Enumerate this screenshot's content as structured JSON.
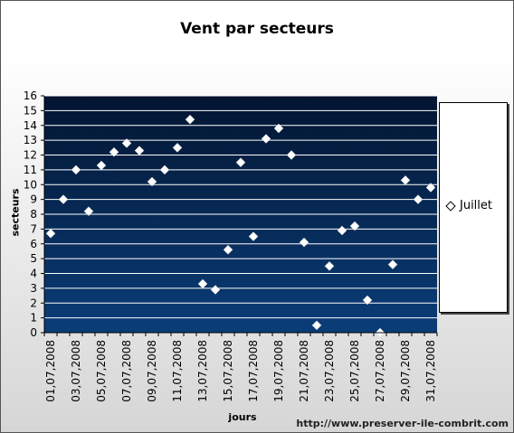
{
  "chart_data": {
    "type": "scatter",
    "title": "Vent par secteurs",
    "xlabel": "jours",
    "ylabel": "secteurs",
    "ylim": [
      0,
      16
    ],
    "yticks": [
      0,
      1,
      2,
      3,
      4,
      5,
      6,
      7,
      8,
      9,
      10,
      11,
      12,
      13,
      14,
      15,
      16
    ],
    "grid": true,
    "legend_position": "right",
    "x_tick_labels": [
      "01,07,2008",
      "03,07,2008",
      "05,07,2008",
      "07,07,2008",
      "09,07,2008",
      "11,07,2008",
      "13,07,2008",
      "15,07,2008",
      "17,07,2008",
      "19,07,2008",
      "21,07,2008",
      "23,07,2008",
      "25,07,2008",
      "27,07,2008",
      "29,07,2008",
      "31,07,2008"
    ],
    "x": [
      "01,07,2008",
      "02,07,2008",
      "03,07,2008",
      "04,07,2008",
      "05,07,2008",
      "06,07,2008",
      "07,07,2008",
      "08,07,2008",
      "09,07,2008",
      "10,07,2008",
      "11,07,2008",
      "12,07,2008",
      "13,07,2008",
      "14,07,2008",
      "15,07,2008",
      "16,07,2008",
      "17,07,2008",
      "18,07,2008",
      "19,07,2008",
      "20,07,2008",
      "21,07,2008",
      "22,07,2008",
      "23,07,2008",
      "24,07,2008",
      "25,07,2008",
      "26,07,2008",
      "27,07,2008",
      "28,07,2008",
      "29,07,2008",
      "30,07,2008",
      "31,07,2008"
    ],
    "series": [
      {
        "name": "Juillet",
        "values": [
          6.7,
          9.0,
          11.0,
          8.2,
          11.3,
          12.2,
          12.8,
          12.3,
          10.2,
          11.0,
          12.5,
          14.4,
          3.3,
          2.9,
          5.6,
          11.5,
          6.5,
          13.1,
          13.8,
          12.0,
          6.1,
          0.5,
          4.5,
          6.9,
          7.2,
          2.2,
          0.0,
          4.6,
          10.3,
          9.0,
          9.8
        ]
      }
    ],
    "colors": {
      "plot_bg_top": "#031531",
      "plot_bg_bottom": "#0a3d78",
      "gridline": "#ffffff",
      "marker_fill": "#ffffff"
    }
  },
  "watermark": "http://www.preserver-ile-combrit.com"
}
